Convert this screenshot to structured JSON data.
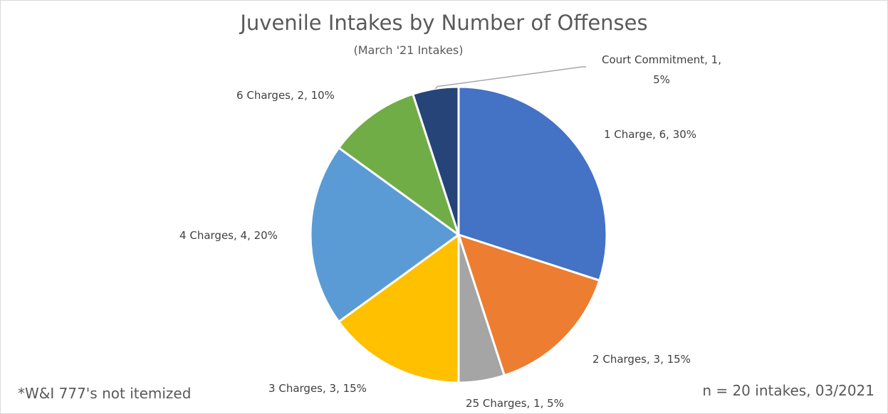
{
  "chart_data": {
    "type": "pie",
    "title": "Juvenile Intakes by Number of Offenses",
    "subtitle": "(March '21 Intakes)",
    "start_angle_deg": 0,
    "direction": "clockwise",
    "legend": "none",
    "slices": [
      {
        "label": "1 Charge",
        "value": 6,
        "percent": "30%",
        "color": "#4472C4",
        "label_text": "1 Charge, 6, 30%"
      },
      {
        "label": "2 Charges",
        "value": 3,
        "percent": "15%",
        "color": "#ED7D31",
        "label_text": "2 Charges, 3, 15%"
      },
      {
        "label": "25 Charges",
        "value": 1,
        "percent": "5%",
        "color": "#A5A5A5",
        "label_text": "25 Charges, 1, 5%"
      },
      {
        "label": "3 Charges",
        "value": 3,
        "percent": "15%",
        "color": "#FFC000",
        "label_text": "3 Charges, 3, 15%"
      },
      {
        "label": "4 Charges",
        "value": 4,
        "percent": "20%",
        "color": "#5B9BD5",
        "label_text": "4 Charges, 4, 20%"
      },
      {
        "label": "6 Charges",
        "value": 2,
        "percent": "10%",
        "color": "#70AD47",
        "label_text": "6 Charges, 2, 10%"
      },
      {
        "label": "Court Commitment",
        "value": 1,
        "percent": "5%",
        "color": "#264478",
        "label_text": "Court Commitment, 1, 5%",
        "label_lines": [
          "Court Commitment, 1,",
          "5%"
        ]
      }
    ]
  },
  "footnotes": {
    "left": "*W&I 777's not itemized",
    "right": "n = 20 intakes, 03/2021"
  }
}
